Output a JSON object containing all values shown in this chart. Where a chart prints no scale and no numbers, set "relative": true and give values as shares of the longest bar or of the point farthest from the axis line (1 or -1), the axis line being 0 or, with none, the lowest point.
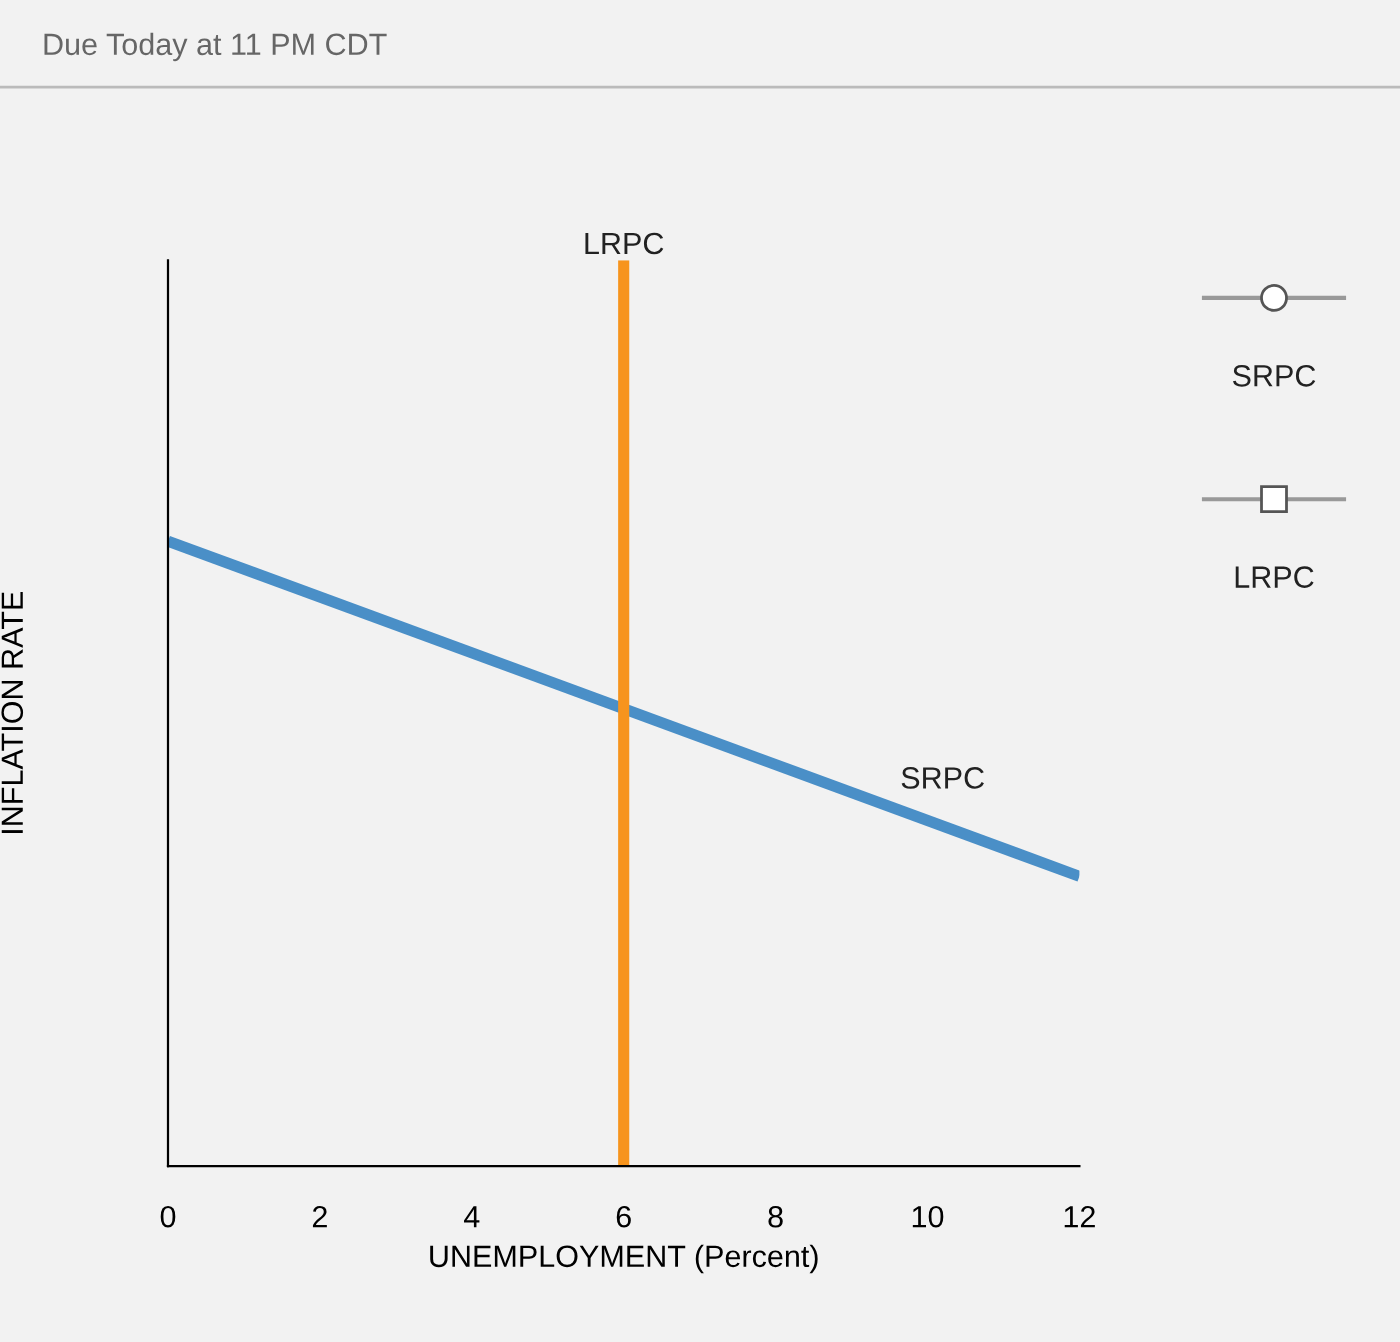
{
  "chart_data": {
    "type": "line",
    "relative": true,
    "xlabel": "UNEMPLOYMENT (Percent)",
    "ylabel": "INFLATION RATE",
    "xlim": [
      0,
      12
    ],
    "xticks": [
      0,
      2,
      4,
      6,
      8,
      10,
      12
    ],
    "series": [
      {
        "name": "SRPC",
        "color": "#4a8fc7",
        "x": [
          0,
          12
        ],
        "values": [
          0.69,
          0.32
        ]
      },
      {
        "name": "LRPC",
        "color": "#f7941d",
        "x": [
          6,
          6
        ],
        "values": [
          0,
          1
        ]
      }
    ],
    "annotations": [
      "Due Today at 11 PM CDT",
      "SRPC",
      "LRPC"
    ],
    "grid": false
  }
}
